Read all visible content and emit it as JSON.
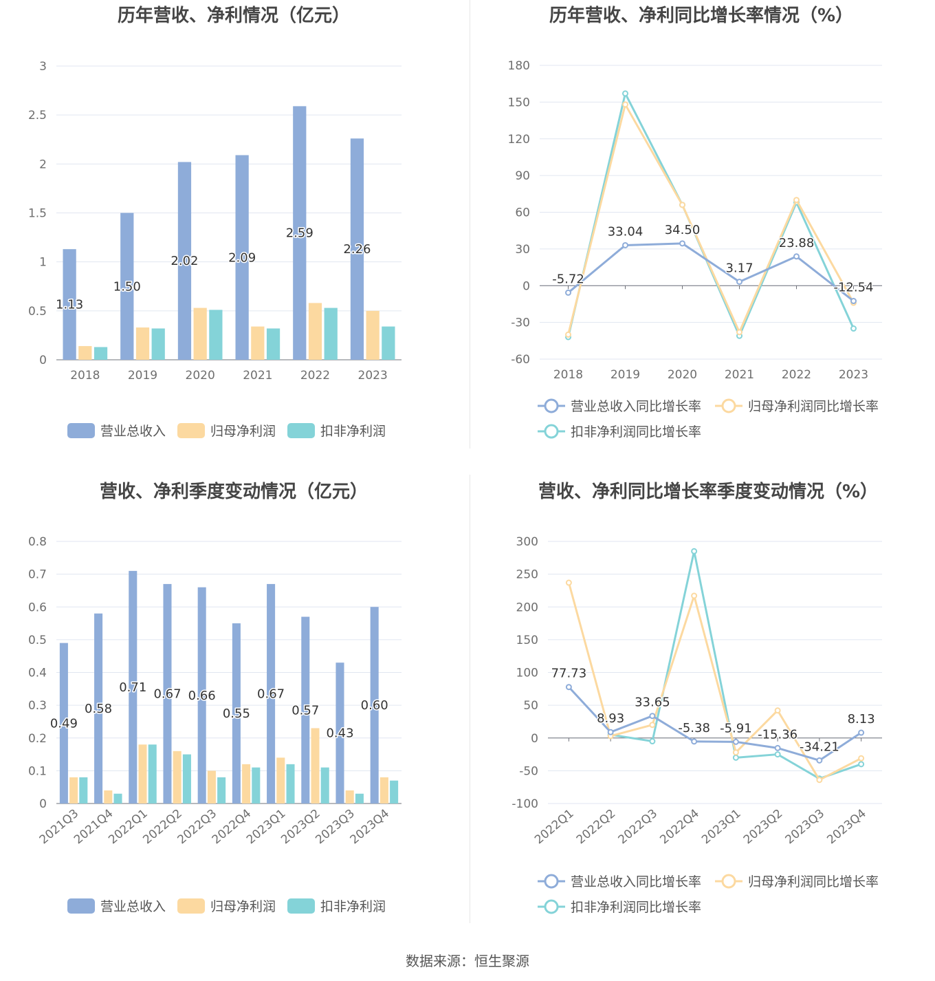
{
  "source": "数据来源：恒生聚源",
  "charts": [
    {
      "type": "bar",
      "title": "历年营收、净利情况（亿元）",
      "categories": [
        "2018",
        "2019",
        "2020",
        "2021",
        "2022",
        "2023"
      ],
      "ylim": [
        0,
        3
      ],
      "yticks": [
        "0",
        "0.5",
        "1",
        "1.5",
        "2",
        "2.5",
        "3"
      ],
      "series": [
        {
          "name": "营业总收入",
          "color": "#8eacd9",
          "values": [
            1.13,
            1.5,
            2.02,
            2.09,
            2.59,
            2.26
          ],
          "labels": [
            "1.13",
            "1.50",
            "2.02",
            "2.09",
            "2.59",
            "2.26"
          ]
        },
        {
          "name": "归母净利润",
          "color": "#fcd9a0",
          "values": [
            0.14,
            0.33,
            0.53,
            0.34,
            0.58,
            0.5
          ]
        },
        {
          "name": "扣非净利润",
          "color": "#84d3d8",
          "values": [
            0.13,
            0.32,
            0.51,
            0.32,
            0.53,
            0.34
          ]
        }
      ]
    },
    {
      "type": "line",
      "title": "历年营收、净利同比增长率情况（%）",
      "categories": [
        "2018",
        "2019",
        "2020",
        "2021",
        "2022",
        "2023"
      ],
      "ylim": [
        -60,
        180
      ],
      "yticks": [
        "-60",
        "-30",
        "0",
        "30",
        "60",
        "90",
        "120",
        "150",
        "180"
      ],
      "series": [
        {
          "name": "营业总收入同比增长率",
          "color": "#8eacd9",
          "values": [
            -5.72,
            33.04,
            34.5,
            3.17,
            23.88,
            -12.54
          ],
          "labels": [
            "-5.72",
            "33.04",
            "34.50",
            "3.17",
            "23.88",
            "-12.54"
          ]
        },
        {
          "name": "归母净利润同比增长率",
          "color": "#fcd9a0",
          "values": [
            -40,
            148,
            66,
            -38,
            70,
            -14
          ]
        },
        {
          "name": "扣非净利润同比增长率",
          "color": "#84d3d8",
          "values": [
            -42,
            157,
            66,
            -41,
            68,
            -35
          ]
        }
      ]
    },
    {
      "type": "bar",
      "title": "营收、净利季度变动情况（亿元）",
      "categories": [
        "2021Q3",
        "2021Q4",
        "2022Q1",
        "2022Q2",
        "2022Q3",
        "2022Q4",
        "2023Q1",
        "2023Q2",
        "2023Q3",
        "2023Q4"
      ],
      "ylim": [
        0,
        0.8
      ],
      "yticks": [
        "0",
        "0.1",
        "0.2",
        "0.3",
        "0.4",
        "0.5",
        "0.6",
        "0.7",
        "0.8"
      ],
      "series": [
        {
          "name": "营业总收入",
          "color": "#8eacd9",
          "values": [
            0.49,
            0.58,
            0.71,
            0.67,
            0.66,
            0.55,
            0.67,
            0.57,
            0.43,
            0.6
          ],
          "labels": [
            "0.49",
            "0.58",
            "0.71",
            "0.67",
            "0.66",
            "0.55",
            "0.67",
            "0.57",
            "0.43",
            "0.60"
          ]
        },
        {
          "name": "归母净利润",
          "color": "#fcd9a0",
          "values": [
            0.08,
            0.04,
            0.18,
            0.16,
            0.1,
            0.12,
            0.14,
            0.23,
            0.04,
            0.08
          ]
        },
        {
          "name": "扣非净利润",
          "color": "#84d3d8",
          "values": [
            0.08,
            0.03,
            0.18,
            0.15,
            0.08,
            0.11,
            0.12,
            0.11,
            0.03,
            0.07
          ]
        }
      ]
    },
    {
      "type": "line",
      "title": "营收、净利同比增长率季度变动情况（%）",
      "categories": [
        "2022Q1",
        "2022Q2",
        "2022Q3",
        "2022Q4",
        "2023Q1",
        "2023Q2",
        "2023Q3",
        "2023Q4"
      ],
      "ylim": [
        -100,
        300
      ],
      "yticks": [
        "-100",
        "-50",
        "0",
        "50",
        "100",
        "150",
        "200",
        "250",
        "300"
      ],
      "series": [
        {
          "name": "营业总收入同比增长率",
          "color": "#8eacd9",
          "values": [
            77.73,
            8.93,
            33.65,
            -5.38,
            -5.91,
            -15.36,
            -34.21,
            8.13
          ],
          "labels": [
            "77.73",
            "8.93",
            "33.65",
            "-5.38",
            "-5.91",
            "-15.36",
            "-34.21",
            "8.13"
          ]
        },
        {
          "name": "归母净利润同比增长率",
          "color": "#fcd9a0",
          "values": [
            237,
            3,
            20,
            217,
            -22,
            42,
            -64,
            -31
          ]
        },
        {
          "name": "扣非净利润同比增长率",
          "color": "#84d3d8",
          "values": [
            null,
            5,
            -5,
            285,
            -30,
            -25,
            -62,
            -40
          ]
        }
      ]
    }
  ]
}
